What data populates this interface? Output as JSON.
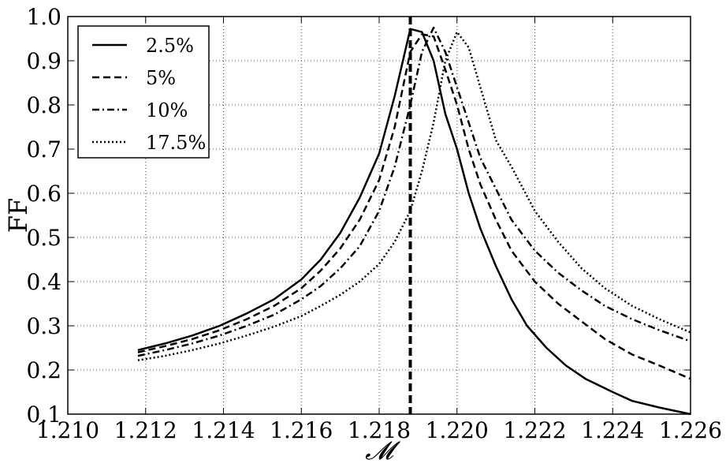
{
  "chart_data": {
    "type": "line",
    "xlabel": "𝓜",
    "ylabel": "FF",
    "xlim": [
      1.21,
      1.226
    ],
    "ylim": [
      0.1,
      1.0
    ],
    "xticks": [
      "1.210",
      "1.212",
      "1.214",
      "1.216",
      "1.218",
      "1.220",
      "1.222",
      "1.224",
      "1.226"
    ],
    "yticks": [
      "0.1",
      "0.2",
      "0.3",
      "0.4",
      "0.5",
      "0.6",
      "0.7",
      "0.8",
      "0.9",
      "1.0"
    ],
    "grid": true,
    "legend_position": "top-left",
    "vertical_line": {
      "x": 1.2188,
      "style": "dashed"
    },
    "series": [
      {
        "name": "2.5%",
        "style": "solid",
        "x": [
          1.2118,
          1.2125,
          1.2132,
          1.2139,
          1.2146,
          1.2153,
          1.216,
          1.2165,
          1.217,
          1.2175,
          1.218,
          1.2184,
          1.2188,
          1.2191,
          1.2194,
          1.2197,
          1.22,
          1.2203,
          1.2206,
          1.221,
          1.2214,
          1.2218,
          1.2223,
          1.2228,
          1.2233,
          1.224,
          1.2245,
          1.2252,
          1.226
        ],
        "y": [
          0.245,
          0.26,
          0.278,
          0.3,
          0.328,
          0.36,
          0.405,
          0.45,
          0.51,
          0.59,
          0.69,
          0.82,
          0.972,
          0.965,
          0.9,
          0.78,
          0.7,
          0.6,
          0.52,
          0.435,
          0.36,
          0.3,
          0.25,
          0.21,
          0.18,
          0.15,
          0.13,
          0.115,
          0.1
        ]
      },
      {
        "name": "5%",
        "style": "dashed",
        "x": [
          1.2118,
          1.2125,
          1.2132,
          1.2139,
          1.2146,
          1.2153,
          1.216,
          1.2165,
          1.217,
          1.2175,
          1.218,
          1.2184,
          1.2188,
          1.2191,
          1.2194,
          1.2197,
          1.22,
          1.2203,
          1.2206,
          1.221,
          1.2214,
          1.222,
          1.2226,
          1.2232,
          1.2238,
          1.2245,
          1.2252,
          1.226
        ],
        "y": [
          0.24,
          0.254,
          0.27,
          0.29,
          0.315,
          0.345,
          0.385,
          0.425,
          0.475,
          0.54,
          0.63,
          0.75,
          0.92,
          0.96,
          0.955,
          0.88,
          0.8,
          0.7,
          0.62,
          0.54,
          0.47,
          0.4,
          0.35,
          0.31,
          0.27,
          0.235,
          0.21,
          0.18
        ]
      },
      {
        "name": "10%",
        "style": "dashdot",
        "x": [
          1.2118,
          1.2125,
          1.2132,
          1.2139,
          1.2146,
          1.2153,
          1.216,
          1.2165,
          1.217,
          1.2175,
          1.218,
          1.2184,
          1.2188,
          1.2191,
          1.2194,
          1.2197,
          1.22,
          1.2203,
          1.2206,
          1.221,
          1.2214,
          1.222,
          1.2226,
          1.2232,
          1.2238,
          1.2245,
          1.2252,
          1.226
        ],
        "y": [
          0.232,
          0.245,
          0.26,
          0.278,
          0.3,
          0.325,
          0.36,
          0.39,
          0.43,
          0.48,
          0.56,
          0.66,
          0.8,
          0.92,
          0.975,
          0.92,
          0.84,
          0.76,
          0.68,
          0.61,
          0.54,
          0.47,
          0.42,
          0.38,
          0.345,
          0.315,
          0.29,
          0.265
        ]
      },
      {
        "name": "17.5%",
        "style": "dotted",
        "x": [
          1.2118,
          1.2125,
          1.2132,
          1.2139,
          1.2146,
          1.2153,
          1.216,
          1.2165,
          1.217,
          1.2175,
          1.218,
          1.2184,
          1.2188,
          1.2191,
          1.2194,
          1.2197,
          1.22,
          1.2203,
          1.2206,
          1.221,
          1.2214,
          1.222,
          1.2226,
          1.2232,
          1.2238,
          1.2245,
          1.2252,
          1.226
        ],
        "y": [
          0.222,
          0.232,
          0.245,
          0.26,
          0.278,
          0.298,
          0.322,
          0.345,
          0.37,
          0.4,
          0.44,
          0.49,
          0.56,
          0.65,
          0.76,
          0.9,
          0.965,
          0.93,
          0.84,
          0.72,
          0.66,
          0.56,
          0.49,
          0.43,
          0.385,
          0.345,
          0.315,
          0.285
        ]
      }
    ]
  }
}
